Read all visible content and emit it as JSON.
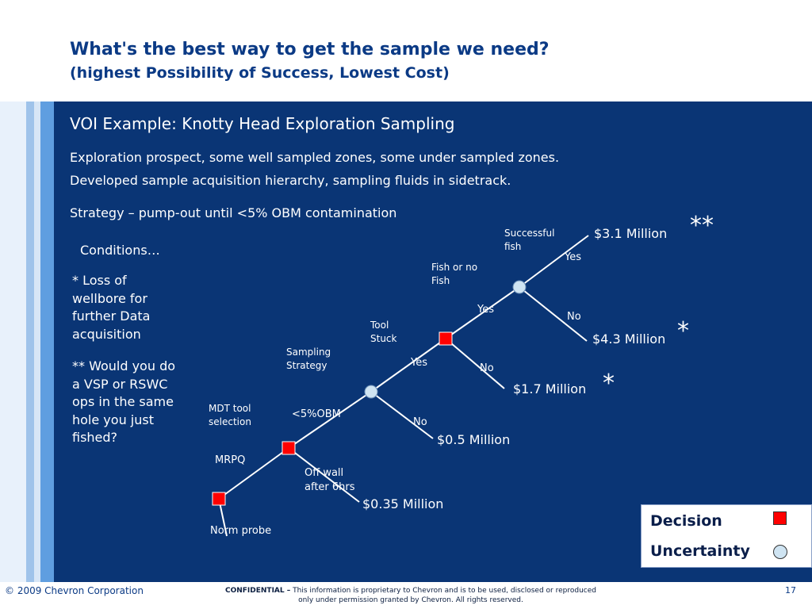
{
  "slide": {
    "title": "What's the best way to get the sample we need?",
    "subtitle": "(highest Possibility of Success, Lowest Cost)"
  },
  "content": {
    "heading": "VOI Example: Knotty Head Exploration Sampling",
    "line1": "Exploration prospect, some well sampled zones, some under sampled zones.",
    "line2": "Developed sample acquisition hierarchy, sampling fluids in sidetrack.",
    "strategy": "Strategy – pump-out until <5% OBM contamination",
    "conditions_title": "Conditions…",
    "condition1": "* Loss of wellbore for further Data acquisition",
    "condition2": "** Would you do a VSP or RSWC ops in the same hole you just fished?"
  },
  "tree": {
    "nodes": {
      "mdt_tool_selection": "MDT tool selection",
      "sampling_strategy": "Sampling Strategy",
      "tool_stuck": "Tool Stuck",
      "fish_or_no_fish": "Fish or no Fish",
      "successful_fish": "Successful fish"
    },
    "branches": {
      "mrpq": "MRPQ",
      "norm_probe": "Norm probe",
      "obm": "<5%OBM",
      "off_wall": "Off wall after 6hrs",
      "stuck_yes": "Yes",
      "stuck_no": "No",
      "fish_yes": "Yes",
      "fish_no": "No",
      "success_yes": "Yes",
      "success_no": "No"
    },
    "outcomes": {
      "success": "$3.1 Million",
      "fail_fish": "$4.3 Million",
      "not_stuck": "$1.7 Million",
      "obm_no": "$0.5 Million",
      "off_wall": "$0.35 Million"
    },
    "marks": {
      "double_star": "**",
      "star_a": "*",
      "star_b": "*"
    }
  },
  "legend": {
    "decision": "Decision",
    "uncertainty": "Uncertainty"
  },
  "footer": {
    "copyright": "© 2009 Chevron Corporation",
    "confidential_label": "CONFIDENTIAL –",
    "confidential_text": "This information is proprietary to Chevron and is to be used, disclosed or reproduced only under permission granted by Chevron.  All rights reserved.",
    "page_number": "17"
  },
  "colors": {
    "panel": "#0a3575",
    "title": "#0b3a85",
    "decision_node": "#ff0000",
    "uncertainty_node": "#cfe4f2"
  }
}
